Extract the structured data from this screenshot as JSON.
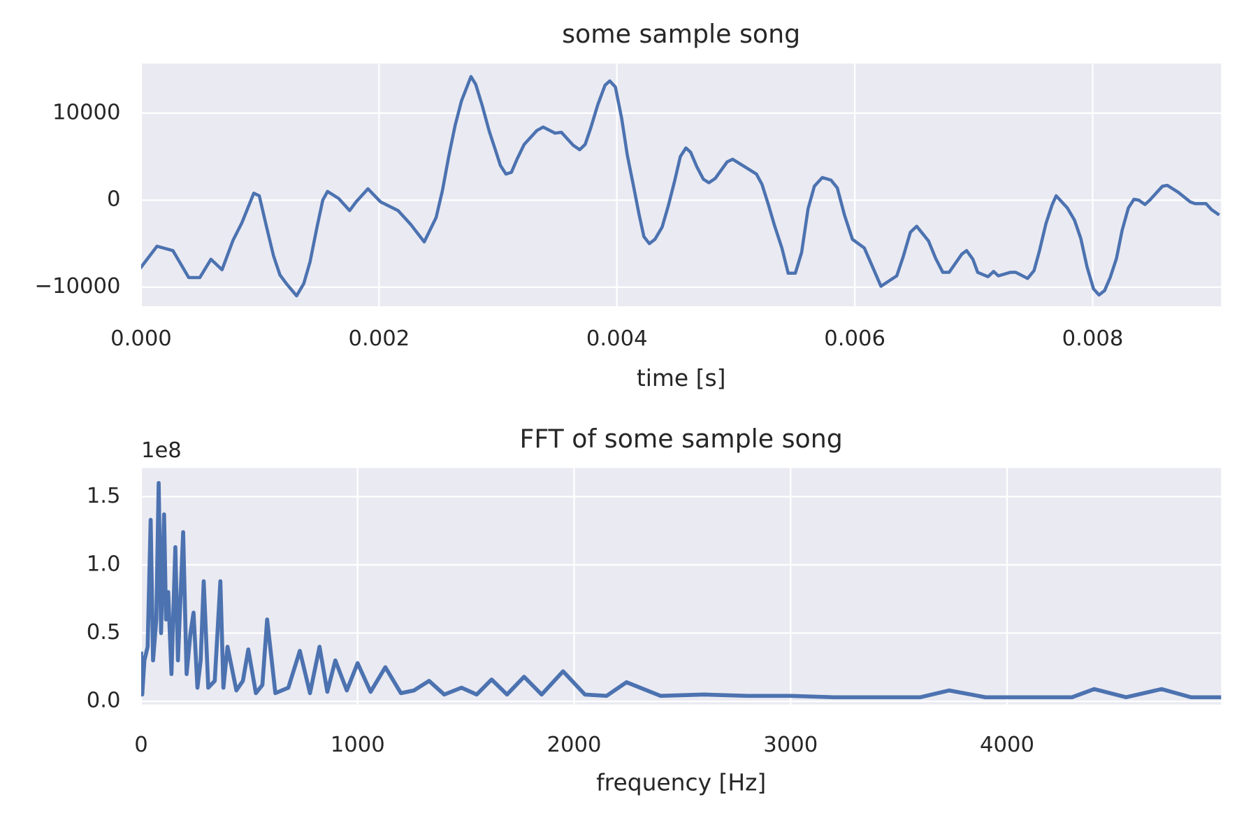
{
  "chart_data": [
    {
      "type": "line",
      "title": "some sample song",
      "xlabel": "time [s]",
      "color": "#4c72b0",
      "grid": true,
      "xlim": [
        0,
        0.00908
      ],
      "ylim": [
        -12200,
        15700
      ],
      "xticks": [
        {
          "value": 0,
          "label": "0.000"
        },
        {
          "value": 0.002,
          "label": "0.002"
        },
        {
          "value": 0.004,
          "label": "0.004"
        },
        {
          "value": 0.006,
          "label": "0.006"
        },
        {
          "value": 0.008,
          "label": "0.008"
        }
      ],
      "yticks": [
        {
          "value": -10000,
          "label": "−10000"
        },
        0,
        10000
      ],
      "x": [
        0,
        0.000133,
        0.000267,
        0.0004,
        0.000493,
        0.000587,
        0.00068,
        0.000773,
        0.000847,
        0.000947,
        0.000993,
        0.001053,
        0.001113,
        0.001167,
        0.001227,
        0.001307,
        0.001367,
        0.00142,
        0.00148,
        0.001527,
        0.001567,
        0.00166,
        0.001753,
        0.001807,
        0.001907,
        0.002013,
        0.00216,
        0.002267,
        0.00238,
        0.00248,
        0.002533,
        0.002587,
        0.00264,
        0.002693,
        0.002773,
        0.002813,
        0.002867,
        0.002927,
        0.00298,
        0.00302,
        0.003067,
        0.003113,
        0.00316,
        0.00322,
        0.003327,
        0.00338,
        0.00348,
        0.003533,
        0.003633,
        0.003687,
        0.003733,
        0.00378,
        0.00384,
        0.0039,
        0.00394,
        0.003987,
        0.00404,
        0.004087,
        0.004147,
        0.004187,
        0.004227,
        0.004273,
        0.00432,
        0.00438,
        0.004433,
        0.004487,
        0.004533,
        0.00458,
        0.00462,
        0.004673,
        0.004727,
        0.004773,
        0.004827,
        0.004927,
        0.004973,
        0.005067,
        0.005173,
        0.00522,
        0.005273,
        0.005327,
        0.005387,
        0.00544,
        0.0055,
        0.005553,
        0.005607,
        0.00566,
        0.005727,
        0.0058,
        0.005853,
        0.005913,
        0.00598,
        0.00608,
        0.006147,
        0.00622,
        0.006353,
        0.006407,
        0.006467,
        0.00652,
        0.00662,
        0.00668,
        0.00674,
        0.006793,
        0.0069,
        0.00694,
        0.006993,
        0.007033,
        0.00712,
        0.007167,
        0.007207,
        0.007307,
        0.007353,
        0.007453,
        0.007507,
        0.007553,
        0.007607,
        0.00766,
        0.007693,
        0.007787,
        0.007847,
        0.0079,
        0.007953,
        0.008007,
        0.008053,
        0.0081,
        0.008147,
        0.0082,
        0.008247,
        0.0083,
        0.008347,
        0.008387,
        0.00844,
        0.00848,
        0.008533,
        0.008587,
        0.008627,
        0.00872,
        0.00882,
        0.00886,
        0.008953,
        0.009,
        0.009053
      ],
      "values": [
        -7700,
        -5300,
        -5800,
        -8900,
        -8900,
        -6800,
        -8000,
        -4600,
        -2600,
        800,
        500,
        -3000,
        -6400,
        -8600,
        -9700,
        -11000,
        -9600,
        -7100,
        -3000,
        0,
        1000,
        200,
        -1200,
        -200,
        1300,
        -200,
        -1200,
        -2800,
        -4800,
        -2000,
        1100,
        5100,
        8600,
        11400,
        14200,
        13300,
        10900,
        7900,
        5700,
        4000,
        3000,
        3200,
        4700,
        6400,
        8000,
        8400,
        7700,
        7800,
        6300,
        5800,
        6400,
        8300,
        11000,
        13200,
        13700,
        13000,
        9400,
        5200,
        1100,
        -1700,
        -4200,
        -5000,
        -4500,
        -3100,
        -600,
        2300,
        5000,
        6000,
        5500,
        3800,
        2400,
        2000,
        2500,
        4400,
        4700,
        3900,
        3000,
        1800,
        -500,
        -3000,
        -5500,
        -8400,
        -8400,
        -6000,
        -1000,
        1600,
        2600,
        2300,
        1400,
        -1700,
        -4500,
        -5500,
        -7600,
        -9900,
        -8700,
        -6500,
        -3700,
        -3000,
        -4700,
        -6700,
        -8300,
        -8300,
        -6200,
        -5800,
        -6800,
        -8300,
        -8800,
        -8200,
        -8700,
        -8300,
        -8300,
        -9000,
        -8100,
        -5800,
        -2700,
        -500,
        500,
        -900,
        -2300,
        -4400,
        -7700,
        -10200,
        -10900,
        -10400,
        -8900,
        -6700,
        -3500,
        -900,
        100,
        0,
        -500,
        0,
        800,
        1600,
        1700,
        900,
        -200,
        -400,
        -400,
        -1100,
        -1600
      ]
    },
    {
      "type": "line",
      "title": "FFT of some sample song",
      "xlabel": "frequency [Hz]",
      "offset_text": "1e8",
      "color": "#4c72b0",
      "grid": true,
      "xlim": [
        0,
        4989
      ],
      "ylim": [
        -2300000,
        170900000
      ],
      "xticks": [
        0,
        1000,
        2000,
        3000,
        4000
      ],
      "yticks": [
        {
          "value": 0,
          "label": "0.0"
        },
        {
          "value": 50000000,
          "label": "0.5"
        },
        {
          "value": 100000000,
          "label": "1.0"
        },
        {
          "value": 150000000,
          "label": "1.5"
        }
      ],
      "x": [
        0,
        5,
        15,
        30,
        44,
        55,
        70,
        81,
        92,
        106,
        115,
        125,
        140,
        158,
        170,
        194,
        210,
        228,
        242,
        260,
        275,
        289,
        310,
        340,
        366,
        380,
        399,
        440,
        470,
        495,
        530,
        560,
        582,
        620,
        680,
        733,
        780,
        824,
        860,
        897,
        950,
        1000,
        1060,
        1128,
        1200,
        1260,
        1330,
        1400,
        1480,
        1550,
        1619,
        1690,
        1769,
        1850,
        1949,
        2050,
        2150,
        2242,
        2400,
        2600,
        2800,
        3000,
        3200,
        3400,
        3600,
        3733,
        3900,
        4100,
        4300,
        4403,
        4550,
        4714,
        4850,
        4989
      ],
      "values": [
        35000000,
        5000000,
        30000000,
        40000000,
        133000000,
        30000000,
        60000000,
        160000000,
        50000000,
        137000000,
        60000000,
        80000000,
        20000000,
        113000000,
        30000000,
        124000000,
        20000000,
        50000000,
        65000000,
        10000000,
        30000000,
        88000000,
        10000000,
        15000000,
        88000000,
        10000000,
        40000000,
        8000000,
        15000000,
        38000000,
        6000000,
        12000000,
        60000000,
        6000000,
        10000000,
        37000000,
        6000000,
        40000000,
        7000000,
        30000000,
        8000000,
        28000000,
        7000000,
        25000000,
        6000000,
        8000000,
        15000000,
        5000000,
        10000000,
        5000000,
        16000000,
        5000000,
        18000000,
        5000000,
        22000000,
        5000000,
        4000000,
        14000000,
        4000000,
        5000000,
        4000000,
        4000000,
        3000000,
        3000000,
        3000000,
        8000000,
        3000000,
        3000000,
        3000000,
        9000000,
        3000000,
        9000000,
        3000000,
        3000000
      ]
    }
  ]
}
